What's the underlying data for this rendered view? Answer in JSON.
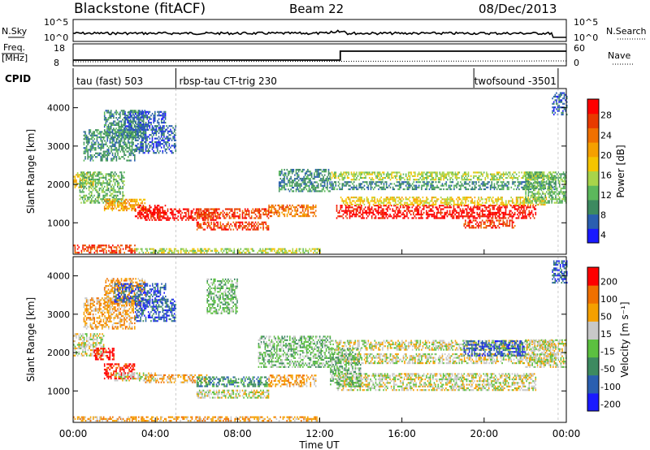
{
  "header": {
    "station": "Blackstone (fitACF)",
    "beam": "Beam 22",
    "date": "08/Dec/2013"
  },
  "params": {
    "nsky_label": "N.Sky",
    "nsearch_label": "N.Search",
    "freq_label_1": "Freq.",
    "freq_label_2": "[MHz]",
    "nave_label": "Nave",
    "cpid_label": "CPID",
    "noise_ticks": [
      "10^5",
      "10^0"
    ],
    "freq_ticks": [
      "18",
      "8"
    ],
    "nave_ticks": [
      "60",
      "0"
    ]
  },
  "cpid_segments": [
    {
      "label": "tau (fast) 503",
      "start_h": 0.0,
      "end_h": 5.0
    },
    {
      "label": "rbsp-tau CT-trig 230",
      "start_h": 5.0,
      "end_h": 19.5
    },
    {
      "label": "twofsound -3501",
      "start_h": 19.5,
      "end_h": 23.6
    }
  ],
  "chart_data": [
    {
      "type": "heatmap",
      "name": "power",
      "ylabel": "Slant Range [km]",
      "xlabel": "",
      "ylim": [
        180,
        4500
      ],
      "xlim": [
        0,
        24
      ],
      "yticks": [
        1000,
        2000,
        3000,
        4000
      ],
      "colorbar": {
        "label": "Power [dB]",
        "ticks": [
          "28",
          "24",
          "20",
          "16",
          "12",
          "8",
          "4"
        ],
        "colors": [
          "#1a1aff",
          "#2a5fb0",
          "#3d8a60",
          "#5cb85c",
          "#a8d44a",
          "#f5c400",
          "#f5a000",
          "#f07000",
          "#e83a00",
          "#ff0000"
        ]
      },
      "blobs": [
        {
          "x0": 0.0,
          "x1": 1.0,
          "y0": 1900,
          "y1": 2300,
          "v": 5
        },
        {
          "x0": 0.3,
          "x1": 2.5,
          "y0": 1500,
          "y1": 2300,
          "v": 3
        },
        {
          "x0": 0.5,
          "x1": 3.0,
          "y0": 2600,
          "y1": 3400,
          "v": 2
        },
        {
          "x0": 1.5,
          "x1": 3.5,
          "y0": 3200,
          "y1": 3900,
          "v": 2
        },
        {
          "x0": 2.5,
          "x1": 4.5,
          "y0": 3400,
          "y1": 3900,
          "v": 1
        },
        {
          "x0": 3.0,
          "x1": 5.0,
          "y0": 2800,
          "y1": 3500,
          "v": 1
        },
        {
          "x0": 1.5,
          "x1": 3.5,
          "y0": 1300,
          "y1": 1600,
          "v": 6
        },
        {
          "x0": 3.0,
          "x1": 4.5,
          "y0": 1100,
          "y1": 1450,
          "v": 9
        },
        {
          "x0": 3.5,
          "x1": 7.0,
          "y0": 1050,
          "y1": 1350,
          "v": 9
        },
        {
          "x0": 6.0,
          "x1": 9.5,
          "y0": 1100,
          "y1": 1350,
          "v": 8
        },
        {
          "x0": 6.0,
          "x1": 9.5,
          "y0": 800,
          "y1": 1000,
          "v": 8
        },
        {
          "x0": 9.5,
          "x1": 11.8,
          "y0": 1150,
          "y1": 1450,
          "v": 7
        },
        {
          "x0": 0.0,
          "x1": 3.0,
          "y0": 200,
          "y1": 400,
          "v": 8
        },
        {
          "x0": 3.0,
          "x1": 12.0,
          "y0": 200,
          "y1": 300,
          "v": 4
        },
        {
          "x0": 10.0,
          "x1": 12.5,
          "y0": 1800,
          "y1": 2400,
          "v": 2
        },
        {
          "x0": 12.5,
          "x1": 23.5,
          "y0": 2100,
          "y1": 2300,
          "v": 4
        },
        {
          "x0": 12.5,
          "x1": 23.5,
          "y0": 1850,
          "y1": 2050,
          "v": 2
        },
        {
          "x0": 12.8,
          "x1": 22.5,
          "y0": 1100,
          "y1": 1450,
          "v": 9
        },
        {
          "x0": 13.0,
          "x1": 23.0,
          "y0": 1450,
          "y1": 1650,
          "v": 5
        },
        {
          "x0": 19.0,
          "x1": 21.5,
          "y0": 850,
          "y1": 1050,
          "v": 8
        },
        {
          "x0": 22.0,
          "x1": 24.0,
          "y0": 1500,
          "y1": 2300,
          "v": 3
        },
        {
          "x0": 23.3,
          "x1": 24.0,
          "y0": 3800,
          "y1": 4400,
          "v": 1
        }
      ]
    },
    {
      "type": "heatmap",
      "name": "velocity",
      "ylabel": "Slant Range [km]",
      "xlabel": "Time UT",
      "ylim": [
        180,
        4500
      ],
      "xlim": [
        0,
        24
      ],
      "yticks": [
        1000,
        2000,
        3000,
        4000
      ],
      "xticks": [
        "00:00",
        "04:00",
        "08:00",
        "12:00",
        "16:00",
        "20:00",
        "00:00"
      ],
      "colorbar": {
        "label": "Velocity [m s⁻¹]",
        "ticks": [
          "200",
          "100",
          "50",
          "15",
          "-15",
          "-50",
          "-100",
          "-200"
        ],
        "colors": [
          "#1a1aff",
          "#2a5fb0",
          "#3d8a60",
          "#5cc040",
          "#c8c8c8",
          "#f5a000",
          "#f07000",
          "#ff0000"
        ]
      },
      "blobs": [
        {
          "x0": 0.0,
          "x1": 1.5,
          "y0": 1900,
          "y1": 2500,
          "v": 4
        },
        {
          "x0": 0.5,
          "x1": 3.0,
          "y0": 2600,
          "y1": 3400,
          "v": 5
        },
        {
          "x0": 1.5,
          "x1": 3.5,
          "y0": 3200,
          "y1": 3900,
          "v": 5
        },
        {
          "x0": 2.0,
          "x1": 4.5,
          "y0": 3300,
          "y1": 3800,
          "v": 1
        },
        {
          "x0": 3.0,
          "x1": 5.0,
          "y0": 2800,
          "y1": 3400,
          "v": 1
        },
        {
          "x0": 1.5,
          "x1": 3.0,
          "y0": 1300,
          "y1": 1700,
          "v": 7
        },
        {
          "x0": 1.0,
          "x1": 2.0,
          "y0": 1800,
          "y1": 2100,
          "v": 7
        },
        {
          "x0": 2.0,
          "x1": 4.0,
          "y0": 1250,
          "y1": 1450,
          "v": 4
        },
        {
          "x0": 3.5,
          "x1": 6.5,
          "y0": 1200,
          "y1": 1400,
          "v": 5
        },
        {
          "x0": 6.0,
          "x1": 9.5,
          "y0": 800,
          "y1": 1000,
          "v": 4
        },
        {
          "x0": 6.0,
          "x1": 9.5,
          "y0": 1100,
          "y1": 1350,
          "v": 2
        },
        {
          "x0": 9.5,
          "x1": 11.8,
          "y0": 1100,
          "y1": 1400,
          "v": 5
        },
        {
          "x0": 0.0,
          "x1": 12.0,
          "y0": 200,
          "y1": 300,
          "v": 5
        },
        {
          "x0": 6.5,
          "x1": 8.0,
          "y0": 3000,
          "y1": 3900,
          "v": 3
        },
        {
          "x0": 9.0,
          "x1": 12.5,
          "y0": 1600,
          "y1": 2400,
          "v": 3
        },
        {
          "x0": 12.5,
          "x1": 23.5,
          "y0": 2050,
          "y1": 2300,
          "v": 4
        },
        {
          "x0": 12.5,
          "x1": 23.5,
          "y0": 1700,
          "y1": 1950,
          "v": 4
        },
        {
          "x0": 12.8,
          "x1": 22.5,
          "y0": 1000,
          "y1": 1450,
          "v": 4
        },
        {
          "x0": 12.5,
          "x1": 14.0,
          "y0": 1100,
          "y1": 2100,
          "v": 3
        },
        {
          "x0": 19.0,
          "x1": 22.0,
          "y0": 1900,
          "y1": 2300,
          "v": 1
        },
        {
          "x0": 22.0,
          "x1": 24.0,
          "y0": 1600,
          "y1": 2300,
          "v": 4
        },
        {
          "x0": 23.3,
          "x1": 24.0,
          "y0": 3800,
          "y1": 4400,
          "v": 1
        }
      ]
    }
  ]
}
